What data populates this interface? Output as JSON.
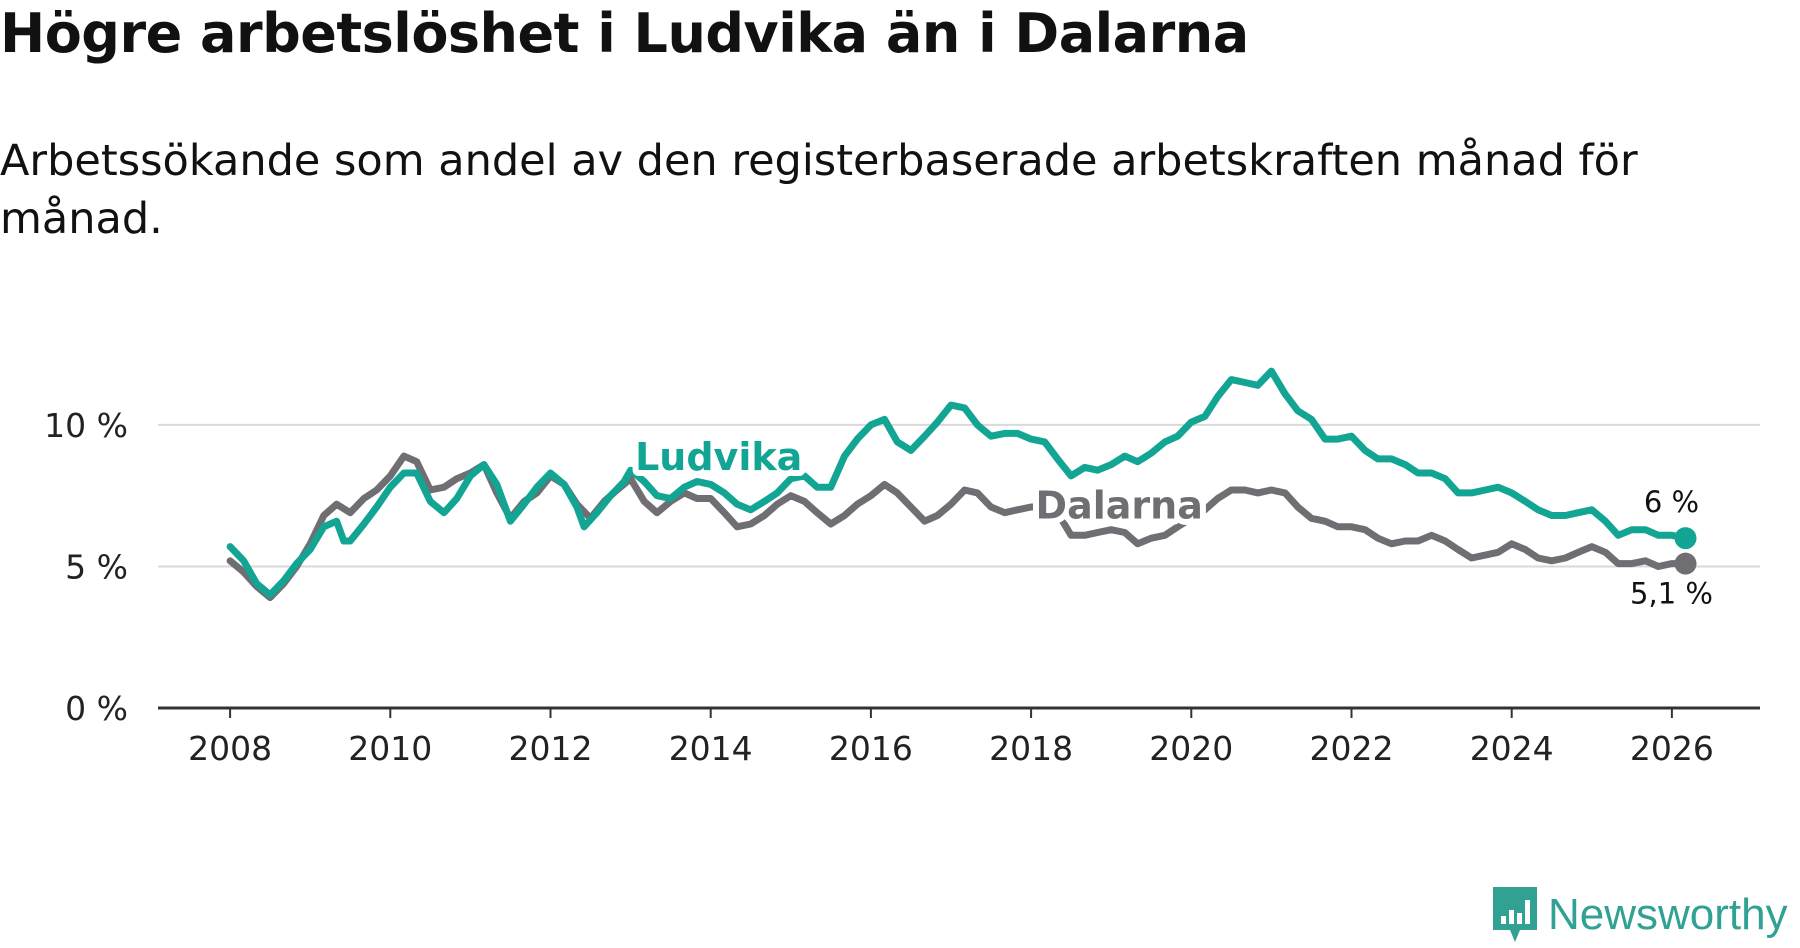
{
  "colors": {
    "ludvika": "#12a594",
    "dalarna": "#6f6e73",
    "grid": "#d9d9d9",
    "axis": "#333333"
  },
  "logo": {
    "text": "Newsworthy",
    "icon": "newsworthy-chart-icon"
  },
  "chart_data": {
    "type": "line",
    "title": "Högre arbetslöshet i Ludvika än i Dalarna",
    "subtitle": "Arbetssökande som andel av den registerbaserade arbetskraften månad för månad.",
    "xlim": [
      2007.1,
      2027.1
    ],
    "ylim": [
      0,
      13
    ],
    "x_ticks": [
      2008,
      2010,
      2012,
      2014,
      2016,
      2018,
      2020,
      2022,
      2024,
      2026
    ],
    "x_tick_labels": [
      "2008",
      "2010",
      "2012",
      "2014",
      "2016",
      "2018",
      "2020",
      "2022",
      "2024",
      "2026"
    ],
    "y_ticks": [
      0,
      5,
      10
    ],
    "y_tick_labels": [
      "0 %",
      "5 %",
      "10 %"
    ],
    "series": [
      {
        "name": "Ludvika",
        "color": "#12a594",
        "end_label": "6 %",
        "points": [
          [
            2008.0,
            5.7
          ],
          [
            2008.17,
            5.2
          ],
          [
            2008.33,
            4.4
          ],
          [
            2008.5,
            4.0
          ],
          [
            2008.67,
            4.5
          ],
          [
            2008.83,
            5.1
          ],
          [
            2009.0,
            5.6
          ],
          [
            2009.17,
            6.4
          ],
          [
            2009.33,
            6.6
          ],
          [
            2009.42,
            5.9
          ],
          [
            2009.5,
            5.9
          ],
          [
            2009.67,
            6.5
          ],
          [
            2009.83,
            7.1
          ],
          [
            2010.0,
            7.8
          ],
          [
            2010.17,
            8.3
          ],
          [
            2010.33,
            8.3
          ],
          [
            2010.5,
            7.3
          ],
          [
            2010.67,
            6.9
          ],
          [
            2010.83,
            7.4
          ],
          [
            2011.0,
            8.2
          ],
          [
            2011.17,
            8.6
          ],
          [
            2011.33,
            7.9
          ],
          [
            2011.5,
            6.6
          ],
          [
            2011.67,
            7.2
          ],
          [
            2011.83,
            7.8
          ],
          [
            2012.0,
            8.3
          ],
          [
            2012.17,
            7.9
          ],
          [
            2012.33,
            7.1
          ],
          [
            2012.42,
            6.4
          ],
          [
            2012.58,
            6.9
          ],
          [
            2012.75,
            7.5
          ],
          [
            2012.92,
            8.0
          ],
          [
            2013.0,
            8.4
          ],
          [
            2013.17,
            8.0
          ],
          [
            2013.33,
            7.5
          ],
          [
            2013.5,
            7.4
          ],
          [
            2013.67,
            7.8
          ],
          [
            2013.83,
            8.0
          ],
          [
            2014.0,
            7.9
          ],
          [
            2014.17,
            7.6
          ],
          [
            2014.33,
            7.2
          ],
          [
            2014.5,
            7.0
          ],
          [
            2014.67,
            7.3
          ],
          [
            2014.83,
            7.6
          ],
          [
            2015.0,
            8.1
          ],
          [
            2015.17,
            8.2
          ],
          [
            2015.33,
            7.8
          ],
          [
            2015.5,
            7.8
          ],
          [
            2015.67,
            8.9
          ],
          [
            2015.83,
            9.5
          ],
          [
            2016.0,
            10.0
          ],
          [
            2016.17,
            10.2
          ],
          [
            2016.33,
            9.4
          ],
          [
            2016.5,
            9.1
          ],
          [
            2016.67,
            9.6
          ],
          [
            2016.83,
            10.1
          ],
          [
            2017.0,
            10.7
          ],
          [
            2017.17,
            10.6
          ],
          [
            2017.33,
            10.0
          ],
          [
            2017.5,
            9.6
          ],
          [
            2017.67,
            9.7
          ],
          [
            2017.83,
            9.7
          ],
          [
            2018.0,
            9.5
          ],
          [
            2018.17,
            9.4
          ],
          [
            2018.33,
            8.8
          ],
          [
            2018.5,
            8.2
          ],
          [
            2018.67,
            8.5
          ],
          [
            2018.83,
            8.4
          ],
          [
            2019.0,
            8.6
          ],
          [
            2019.17,
            8.9
          ],
          [
            2019.33,
            8.7
          ],
          [
            2019.5,
            9.0
          ],
          [
            2019.67,
            9.4
          ],
          [
            2019.83,
            9.6
          ],
          [
            2020.0,
            10.1
          ],
          [
            2020.17,
            10.3
          ],
          [
            2020.33,
            11.0
          ],
          [
            2020.5,
            11.6
          ],
          [
            2020.67,
            11.5
          ],
          [
            2020.83,
            11.4
          ],
          [
            2021.0,
            11.9
          ],
          [
            2021.17,
            11.1
          ],
          [
            2021.33,
            10.5
          ],
          [
            2021.5,
            10.2
          ],
          [
            2021.67,
            9.5
          ],
          [
            2021.83,
            9.5
          ],
          [
            2022.0,
            9.6
          ],
          [
            2022.17,
            9.1
          ],
          [
            2022.33,
            8.8
          ],
          [
            2022.5,
            8.8
          ],
          [
            2022.67,
            8.6
          ],
          [
            2022.83,
            8.3
          ],
          [
            2023.0,
            8.3
          ],
          [
            2023.17,
            8.1
          ],
          [
            2023.33,
            7.6
          ],
          [
            2023.5,
            7.6
          ],
          [
            2023.67,
            7.7
          ],
          [
            2023.83,
            7.8
          ],
          [
            2024.0,
            7.6
          ],
          [
            2024.17,
            7.3
          ],
          [
            2024.33,
            7.0
          ],
          [
            2024.5,
            6.8
          ],
          [
            2024.67,
            6.8
          ],
          [
            2024.83,
            6.9
          ],
          [
            2025.0,
            7.0
          ],
          [
            2025.17,
            6.6
          ],
          [
            2025.33,
            6.1
          ],
          [
            2025.5,
            6.3
          ],
          [
            2025.67,
            6.3
          ],
          [
            2025.83,
            6.1
          ],
          [
            2026.0,
            6.1
          ],
          [
            2026.17,
            6.0
          ]
        ]
      },
      {
        "name": "Dalarna",
        "color": "#6f6e73",
        "end_label": "5,1 %",
        "points": [
          [
            2008.0,
            5.2
          ],
          [
            2008.17,
            4.8
          ],
          [
            2008.33,
            4.3
          ],
          [
            2008.5,
            3.9
          ],
          [
            2008.67,
            4.4
          ],
          [
            2008.83,
            5.0
          ],
          [
            2009.0,
            5.8
          ],
          [
            2009.17,
            6.8
          ],
          [
            2009.33,
            7.2
          ],
          [
            2009.5,
            6.9
          ],
          [
            2009.67,
            7.4
          ],
          [
            2009.83,
            7.7
          ],
          [
            2010.0,
            8.2
          ],
          [
            2010.17,
            8.9
          ],
          [
            2010.33,
            8.7
          ],
          [
            2010.5,
            7.7
          ],
          [
            2010.67,
            7.8
          ],
          [
            2010.83,
            8.1
          ],
          [
            2011.0,
            8.3
          ],
          [
            2011.17,
            8.6
          ],
          [
            2011.33,
            7.6
          ],
          [
            2011.5,
            6.7
          ],
          [
            2011.67,
            7.3
          ],
          [
            2011.83,
            7.6
          ],
          [
            2012.0,
            8.2
          ],
          [
            2012.17,
            7.9
          ],
          [
            2012.33,
            7.2
          ],
          [
            2012.5,
            6.7
          ],
          [
            2012.67,
            7.3
          ],
          [
            2012.83,
            7.7
          ],
          [
            2013.0,
            8.1
          ],
          [
            2013.17,
            7.3
          ],
          [
            2013.33,
            6.9
          ],
          [
            2013.5,
            7.3
          ],
          [
            2013.67,
            7.6
          ],
          [
            2013.83,
            7.4
          ],
          [
            2014.0,
            7.4
          ],
          [
            2014.17,
            6.9
          ],
          [
            2014.33,
            6.4
          ],
          [
            2014.5,
            6.5
          ],
          [
            2014.67,
            6.8
          ],
          [
            2014.83,
            7.2
          ],
          [
            2015.0,
            7.5
          ],
          [
            2015.17,
            7.3
          ],
          [
            2015.33,
            6.9
          ],
          [
            2015.5,
            6.5
          ],
          [
            2015.67,
            6.8
          ],
          [
            2015.83,
            7.2
          ],
          [
            2016.0,
            7.5
          ],
          [
            2016.17,
            7.9
          ],
          [
            2016.33,
            7.6
          ],
          [
            2016.5,
            7.1
          ],
          [
            2016.67,
            6.6
          ],
          [
            2016.83,
            6.8
          ],
          [
            2017.0,
            7.2
          ],
          [
            2017.17,
            7.7
          ],
          [
            2017.33,
            7.6
          ],
          [
            2017.5,
            7.1
          ],
          [
            2017.67,
            6.9
          ],
          [
            2017.83,
            7.0
          ],
          [
            2018.0,
            7.1
          ],
          [
            2018.17,
            7.1
          ],
          [
            2018.33,
            6.9
          ],
          [
            2018.5,
            6.1
          ],
          [
            2018.67,
            6.1
          ],
          [
            2018.83,
            6.2
          ],
          [
            2019.0,
            6.3
          ],
          [
            2019.17,
            6.2
          ],
          [
            2019.33,
            5.8
          ],
          [
            2019.5,
            6.0
          ],
          [
            2019.67,
            6.1
          ],
          [
            2019.83,
            6.4
          ],
          [
            2020.0,
            6.7
          ],
          [
            2020.17,
            7.0
          ],
          [
            2020.33,
            7.4
          ],
          [
            2020.5,
            7.7
          ],
          [
            2020.67,
            7.7
          ],
          [
            2020.83,
            7.6
          ],
          [
            2021.0,
            7.7
          ],
          [
            2021.17,
            7.6
          ],
          [
            2021.33,
            7.1
          ],
          [
            2021.5,
            6.7
          ],
          [
            2021.67,
            6.6
          ],
          [
            2021.83,
            6.4
          ],
          [
            2022.0,
            6.4
          ],
          [
            2022.17,
            6.3
          ],
          [
            2022.33,
            6.0
          ],
          [
            2022.5,
            5.8
          ],
          [
            2022.67,
            5.9
          ],
          [
            2022.83,
            5.9
          ],
          [
            2023.0,
            6.1
          ],
          [
            2023.17,
            5.9
          ],
          [
            2023.33,
            5.6
          ],
          [
            2023.5,
            5.3
          ],
          [
            2023.67,
            5.4
          ],
          [
            2023.83,
            5.5
          ],
          [
            2024.0,
            5.8
          ],
          [
            2024.17,
            5.6
          ],
          [
            2024.33,
            5.3
          ],
          [
            2024.5,
            5.2
          ],
          [
            2024.67,
            5.3
          ],
          [
            2024.83,
            5.5
          ],
          [
            2025.0,
            5.7
          ],
          [
            2025.17,
            5.5
          ],
          [
            2025.33,
            5.1
          ],
          [
            2025.5,
            5.1
          ],
          [
            2025.67,
            5.2
          ],
          [
            2025.83,
            5.0
          ],
          [
            2026.0,
            5.1
          ],
          [
            2026.17,
            5.1
          ]
        ]
      }
    ],
    "inline_labels": [
      {
        "series": "Ludvika",
        "text": "Ludvika",
        "x": 2014.1,
        "y": 8.4
      },
      {
        "series": "Dalarna",
        "text": "Dalarna",
        "x": 2019.1,
        "y": 6.7
      }
    ]
  }
}
